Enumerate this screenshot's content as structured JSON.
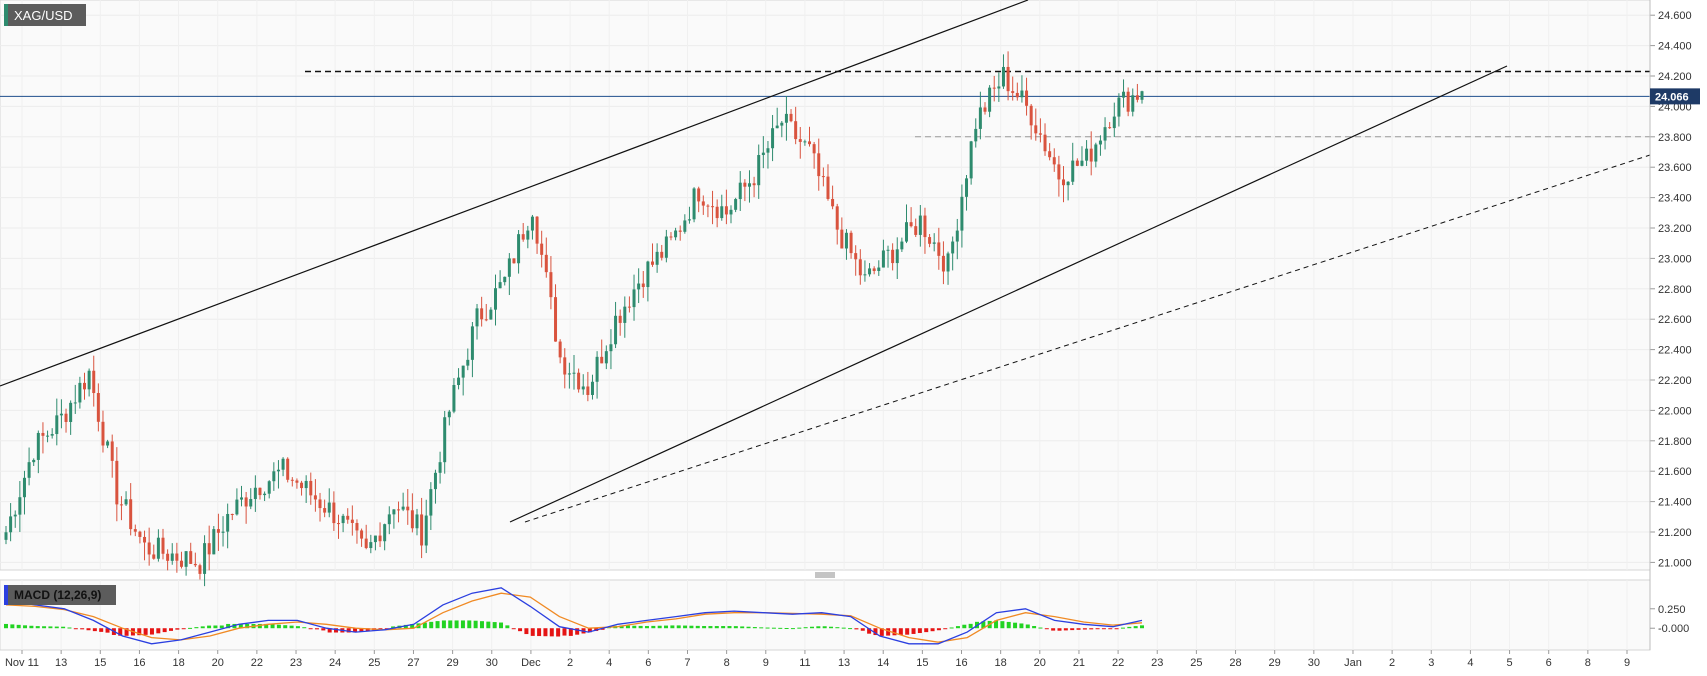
{
  "colors": {
    "up": "#2e8b6e",
    "down": "#d9533e",
    "blue": "#1f4e8c",
    "macd_line": "#2b3fe0",
    "signal_line": "#f08a24",
    "hist_pos": "#22d322",
    "hist_neg": "#e51414",
    "badge_bg": "#5c5c5c",
    "price_badge": "#1e3a66"
  },
  "symbol": "XAG/USD",
  "macd_label": "MACD (12,26,9)",
  "current_price": "24.066",
  "chart_data": [
    {
      "type": "candlestick",
      "title": "XAG/USD",
      "ylim": [
        20.95,
        24.7
      ],
      "y_ticks": [
        "24.600",
        "24.400",
        "24.200",
        "24.000",
        "23.800",
        "23.600",
        "23.400",
        "23.200",
        "23.000",
        "22.800",
        "22.600",
        "22.400",
        "22.200",
        "22.000",
        "21.800",
        "21.600",
        "21.400",
        "21.200",
        "21.000"
      ],
      "x_tick_labels": [
        "Nov 11",
        "13",
        "15",
        "16",
        "18",
        "20",
        "22",
        "23",
        "24",
        "25",
        "27",
        "29",
        "30",
        "Dec",
        "2",
        "4",
        "6",
        "7",
        "8",
        "9",
        "11",
        "13",
        "14",
        "15",
        "16",
        "18",
        "20",
        "21",
        "22",
        "23",
        "25",
        "28",
        "29",
        "30",
        "Jan",
        "2",
        "3",
        "4",
        "5",
        "6",
        "8",
        "9"
      ],
      "current_price": 24.066,
      "levels": [
        {
          "style": "dashed-black",
          "value": 24.23
        },
        {
          "style": "dashed-gray",
          "value": 23.8
        }
      ],
      "anchors": {
        "anchor_prices": [
          21.2,
          21.75,
          21.95,
          22.25,
          21.45,
          21.1,
          21.05,
          21.0,
          21.3,
          21.5,
          21.6,
          21.45,
          21.3,
          21.05,
          21.4,
          21.2,
          22.0,
          22.6,
          22.85,
          23.35,
          22.35,
          22.15,
          22.6,
          22.9,
          23.1,
          23.45,
          23.3,
          23.55,
          23.9,
          23.7,
          23.2,
          22.85,
          23.05,
          23.25,
          22.95,
          23.9,
          24.2,
          23.95,
          23.55,
          23.65,
          24.0,
          24.1
        ],
        "segment_steps": 6
      }
    },
    {
      "type": "macd",
      "title": "MACD (12,26,9)",
      "y_ticks": [
        "0.250",
        "-0.000"
      ],
      "ylim": [
        -0.28,
        0.62
      ],
      "macd_values": [
        0.35,
        0.3,
        0.25,
        0.1,
        -0.1,
        -0.2,
        -0.15,
        -0.05,
        0.05,
        0.1,
        0.1,
        0.0,
        -0.05,
        -0.02,
        0.05,
        0.3,
        0.45,
        0.52,
        0.28,
        0.02,
        -0.05,
        0.05,
        0.1,
        0.15,
        0.2,
        0.22,
        0.2,
        0.18,
        0.2,
        0.15,
        -0.1,
        -0.2,
        -0.2,
        -0.05,
        0.2,
        0.25,
        0.1,
        0.05,
        0.02,
        0.1
      ],
      "signal_values": [
        0.3,
        0.28,
        0.24,
        0.15,
        0.0,
        -0.12,
        -0.15,
        -0.1,
        0.0,
        0.05,
        0.08,
        0.05,
        0.0,
        -0.02,
        0.0,
        0.2,
        0.35,
        0.45,
        0.4,
        0.15,
        0.0,
        0.02,
        0.08,
        0.12,
        0.18,
        0.2,
        0.2,
        0.19,
        0.18,
        0.16,
        0.0,
        -0.12,
        -0.18,
        -0.12,
        0.1,
        0.2,
        0.15,
        0.08,
        0.04,
        0.07
      ]
    }
  ]
}
